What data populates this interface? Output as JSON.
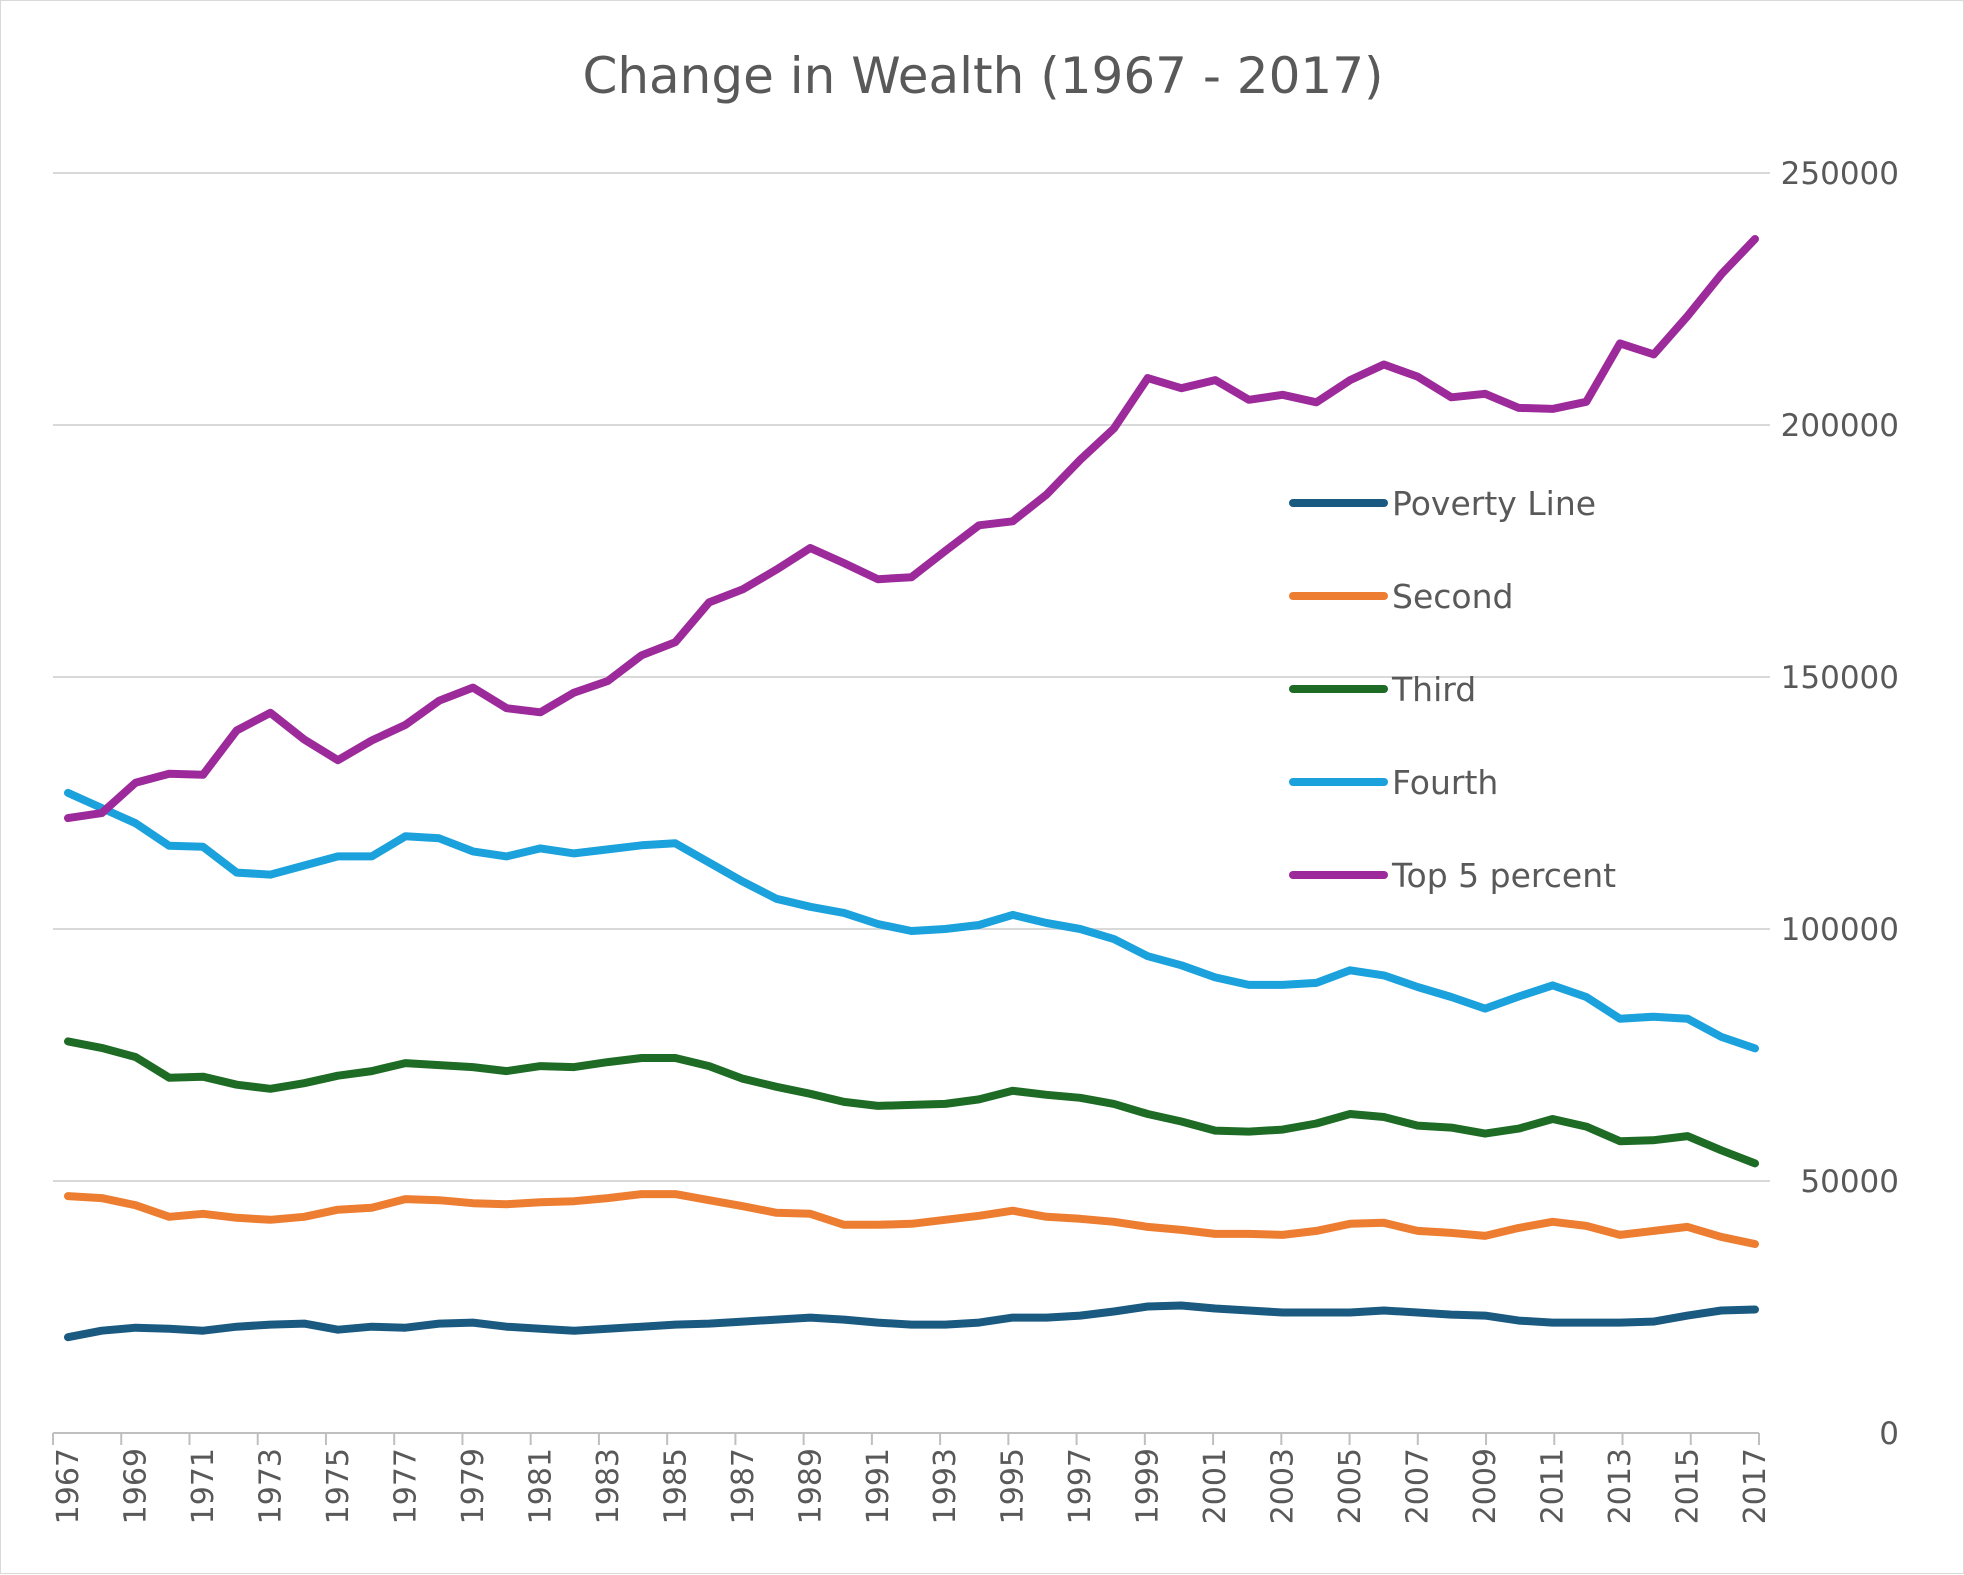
{
  "chart_data": {
    "type": "line",
    "title": "Change in Wealth (1967 - 2017)",
    "xlabel": "",
    "ylabel": "",
    "ylim": [
      0,
      250000
    ],
    "yticks": [
      "0",
      "50000",
      "100000",
      "150000",
      "200000",
      "250000"
    ],
    "y_axis_position": "right",
    "grid": true,
    "legend_position": "right-center",
    "x_tick_rotation": "vertical",
    "x": [
      1967,
      1968,
      1969,
      1970,
      1971,
      1972,
      1973,
      1974,
      1975,
      1976,
      1977,
      1978,
      1979,
      1980,
      1981,
      1982,
      1983,
      1984,
      1985,
      1986,
      1987,
      1988,
      1989,
      1990,
      1991,
      1992,
      1993,
      1994,
      1995,
      1996,
      1997,
      1998,
      1999,
      2000,
      2001,
      2002,
      2003,
      2004,
      2005,
      2006,
      2007,
      2008,
      2009,
      2010,
      2011,
      2012,
      2013,
      2014,
      2015,
      2016,
      2017
    ],
    "xticks": [
      "1967",
      "1969",
      "1971",
      "1973",
      "1975",
      "1977",
      "1979",
      "1981",
      "1983",
      "1985",
      "1987",
      "1989",
      "1991",
      "1993",
      "1995",
      "1997",
      "1999",
      "2001",
      "2003",
      "2005",
      "2007",
      "2009",
      "2011",
      "2013",
      "2015",
      "2017"
    ],
    "series": [
      {
        "name": "Poverty Line",
        "color": "#1a5a80",
        "values": [
          19000,
          20300,
          20900,
          20700,
          20300,
          21100,
          21500,
          21700,
          20500,
          21100,
          20900,
          21700,
          21900,
          21100,
          20700,
          20300,
          20700,
          21100,
          21500,
          21700,
          22100,
          22500,
          22900,
          22500,
          21900,
          21500,
          21500,
          21900,
          22900,
          22900,
          23300,
          24100,
          25100,
          25300,
          24700,
          24300,
          23900,
          23900,
          23900,
          24300,
          23900,
          23500,
          23300,
          22300,
          21900,
          21900,
          21900,
          22100,
          23300,
          24300,
          24500
        ]
      },
      {
        "name": "Second",
        "color": "#ed7d31",
        "values": [
          47000,
          46600,
          45200,
          42900,
          43500,
          42700,
          42300,
          42900,
          44300,
          44700,
          46400,
          46200,
          45600,
          45400,
          45800,
          46000,
          46600,
          47400,
          47400,
          46200,
          45000,
          43700,
          43500,
          41300,
          41300,
          41500,
          42300,
          43100,
          44100,
          42900,
          42500,
          41900,
          40900,
          40300,
          39500,
          39500,
          39300,
          40100,
          41500,
          41700,
          40100,
          39700,
          39100,
          40700,
          41900,
          41100,
          39300,
          40100,
          40900,
          38900,
          37500
        ]
      },
      {
        "name": "Third",
        "color": "#1e6b25",
        "values": [
          77700,
          76400,
          74600,
          70500,
          70700,
          69100,
          68300,
          69400,
          70900,
          71800,
          73400,
          73000,
          72600,
          71800,
          72800,
          72600,
          73600,
          74400,
          74400,
          72800,
          70300,
          68700,
          67300,
          65700,
          64900,
          65100,
          65300,
          66200,
          67900,
          67100,
          66500,
          65300,
          63300,
          61800,
          60000,
          59800,
          60200,
          61400,
          63300,
          62700,
          61000,
          60600,
          59400,
          60400,
          62300,
          60800,
          57900,
          58100,
          58900,
          56100,
          53500
        ]
      },
      {
        "name": "Fourth",
        "color": "#1ba1dc",
        "values": [
          127000,
          124000,
          121000,
          116500,
          116300,
          111200,
          110800,
          112600,
          114400,
          114400,
          118400,
          118000,
          115400,
          114400,
          116000,
          115000,
          115800,
          116600,
          117000,
          113200,
          109400,
          106000,
          104400,
          103200,
          101000,
          99600,
          100000,
          100800,
          102800,
          101200,
          100000,
          98000,
          94600,
          92800,
          90400,
          88900,
          88900,
          89300,
          91800,
          90800,
          88500,
          86500,
          84200,
          86600,
          88800,
          86500,
          82200,
          82600,
          82200,
          78600,
          76300
        ]
      },
      {
        "name": "Top 5 percent",
        "color": "#9c2a9a",
        "values": [
          122000,
          123000,
          129000,
          130800,
          130600,
          139400,
          142900,
          137600,
          133500,
          137400,
          140500,
          145300,
          147900,
          143800,
          143000,
          146900,
          149200,
          154300,
          156900,
          164800,
          167400,
          171300,
          175600,
          172600,
          169400,
          169800,
          175000,
          180100,
          180900,
          186200,
          193100,
          199300,
          209300,
          207300,
          208900,
          205000,
          206000,
          204500,
          208900,
          212000,
          209600,
          205500,
          206200,
          203400,
          203200,
          204600,
          216200,
          214000,
          221600,
          229900,
          236900
        ]
      }
    ]
  }
}
